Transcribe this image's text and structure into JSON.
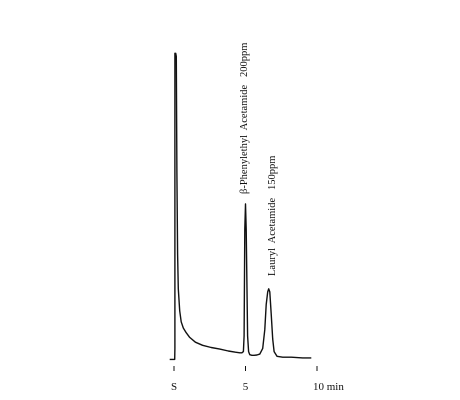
{
  "chart_data": {
    "type": "line",
    "title": "",
    "xlabel": "",
    "ylabel": "",
    "x_unit": "min",
    "xlim": [
      -0.3,
      11.2
    ],
    "ylim": [
      0,
      100
    ],
    "x_ticks": [
      {
        "value": 0,
        "label": "S"
      },
      {
        "value": 5,
        "label": "5"
      },
      {
        "value": 10,
        "label": "10 min"
      }
    ],
    "series": [
      {
        "x": [
          -0.3,
          0.05,
          0.06,
          0.06,
          0.12,
          0.16,
          0.2,
          0.25,
          0.3,
          0.4,
          0.5,
          0.65,
          0.85,
          1.1,
          1.5,
          2.0,
          2.6,
          3.2,
          3.8,
          4.3,
          4.6,
          4.75,
          4.85,
          4.9,
          4.95,
          5.0,
          5.05,
          5.1,
          5.15,
          5.22,
          5.3,
          5.45,
          5.6,
          5.8,
          6.0,
          6.2,
          6.35,
          6.45,
          6.55,
          6.62,
          6.7,
          6.8,
          6.9,
          7.0,
          7.2,
          7.6,
          8.2,
          9.0,
          9.6
        ],
        "y": [
          0.5,
          0.5,
          4,
          98,
          98,
          97,
          60,
          34,
          23,
          16,
          12.5,
          10.5,
          9,
          7.5,
          6,
          5,
          4.3,
          3.8,
          3.2,
          2.8,
          2.6,
          2.6,
          3,
          8,
          42,
          50,
          42,
          25,
          8,
          3,
          2,
          1.8,
          1.8,
          1.9,
          2.2,
          4,
          10,
          18,
          22,
          23,
          22,
          15,
          7,
          3,
          1.5,
          1.2,
          1.2,
          1.0,
          1.0
        ]
      }
    ],
    "annotations": [
      {
        "label": "β-Phenylethyl  Acetamide   200ppm",
        "x": 5.0
      },
      {
        "label": "Lauryl  Acetamide   150ppm",
        "x": 6.6
      }
    ],
    "grid": false,
    "legend": "none",
    "color": "#111111"
  }
}
